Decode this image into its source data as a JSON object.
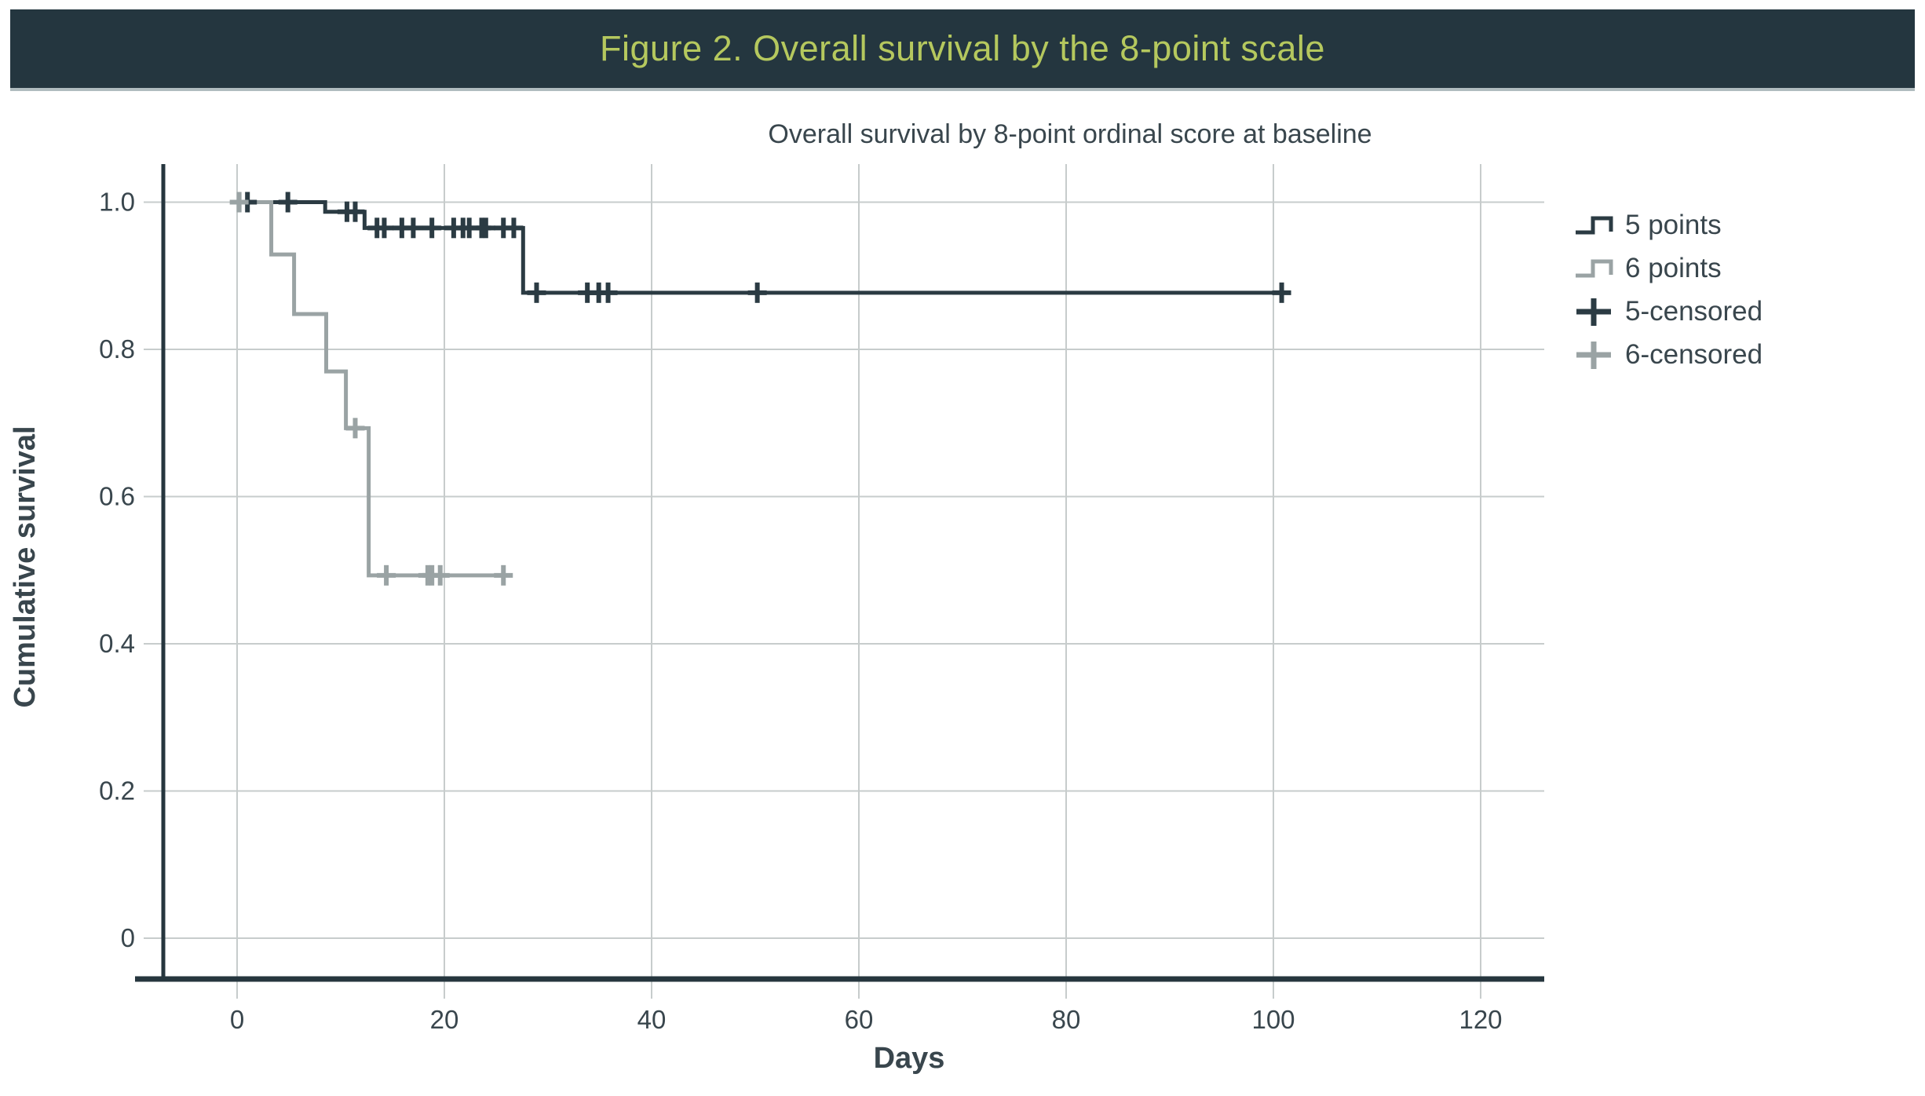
{
  "header": {
    "title": "Figure 2. Overall survival by the 8-point scale",
    "bg_color": "#24363f",
    "title_color": "#b5c85e"
  },
  "chart_data": {
    "type": "line",
    "subtype": "kaplan_meier_step",
    "title": "Overall survival by 8-point ordinal score at baseline",
    "xlabel": "Days",
    "ylabel": "Cumulative survival",
    "xlim": [
      -10,
      126
    ],
    "ylim": [
      -0.06,
      1.05
    ],
    "x_ticks": [
      0,
      20,
      40,
      60,
      80,
      100,
      120
    ],
    "y_tick_values": [
      1.0,
      0.8,
      0.6,
      0.4,
      0.2,
      0
    ],
    "y_ticks": [
      "1.0",
      "0.8",
      "0.6",
      "0.4",
      "0.2",
      "0"
    ],
    "grid": true,
    "legend_position": "right",
    "colors": {
      "grid": "#c7cccc",
      "axis": "#26363e",
      "text": "#39464d"
    },
    "series": [
      {
        "name": "5 points",
        "color": "#2b3b43",
        "steps": [
          [
            0,
            1.0
          ],
          [
            8.5,
            1.0
          ],
          [
            8.5,
            0.987
          ],
          [
            12.3,
            0.987
          ],
          [
            12.3,
            0.965
          ],
          [
            27.6,
            0.965
          ],
          [
            27.6,
            0.877
          ],
          [
            101.7,
            0.877
          ]
        ],
        "censored": [
          [
            1.0,
            1.0
          ],
          [
            4.9,
            1.0
          ],
          [
            10.6,
            0.987
          ],
          [
            11.4,
            0.987
          ],
          [
            13.5,
            0.965
          ],
          [
            14.2,
            0.965
          ],
          [
            15.9,
            0.965
          ],
          [
            17.0,
            0.965
          ],
          [
            18.8,
            0.965
          ],
          [
            20.9,
            0.965
          ],
          [
            21.8,
            0.965
          ],
          [
            22.4,
            0.965
          ],
          [
            23.6,
            0.965
          ],
          [
            24.0,
            0.965
          ],
          [
            25.7,
            0.965
          ],
          [
            26.7,
            0.965
          ],
          [
            28.9,
            0.877
          ],
          [
            33.8,
            0.877
          ],
          [
            34.9,
            0.877
          ],
          [
            35.8,
            0.877
          ],
          [
            50.2,
            0.877
          ],
          [
            100.8,
            0.877
          ]
        ]
      },
      {
        "name": "6 points",
        "color": "#9aa3a4",
        "steps": [
          [
            0,
            1.0
          ],
          [
            3.3,
            1.0
          ],
          [
            3.3,
            0.929
          ],
          [
            5.5,
            0.929
          ],
          [
            5.5,
            0.848
          ],
          [
            8.6,
            0.848
          ],
          [
            8.6,
            0.77
          ],
          [
            10.5,
            0.77
          ],
          [
            10.5,
            0.693
          ],
          [
            12.7,
            0.693
          ],
          [
            12.7,
            0.493
          ],
          [
            26.5,
            0.493
          ]
        ],
        "censored": [
          [
            0.2,
            1.0
          ],
          [
            11.4,
            0.693
          ],
          [
            14.4,
            0.493
          ],
          [
            18.4,
            0.493
          ],
          [
            18.8,
            0.493
          ],
          [
            19.6,
            0.493
          ],
          [
            25.7,
            0.493
          ]
        ]
      }
    ],
    "censored_legend": [
      {
        "name": "5-censored",
        "color": "#2b3b43"
      },
      {
        "name": "6-censored",
        "color": "#9aa3a4"
      }
    ]
  }
}
